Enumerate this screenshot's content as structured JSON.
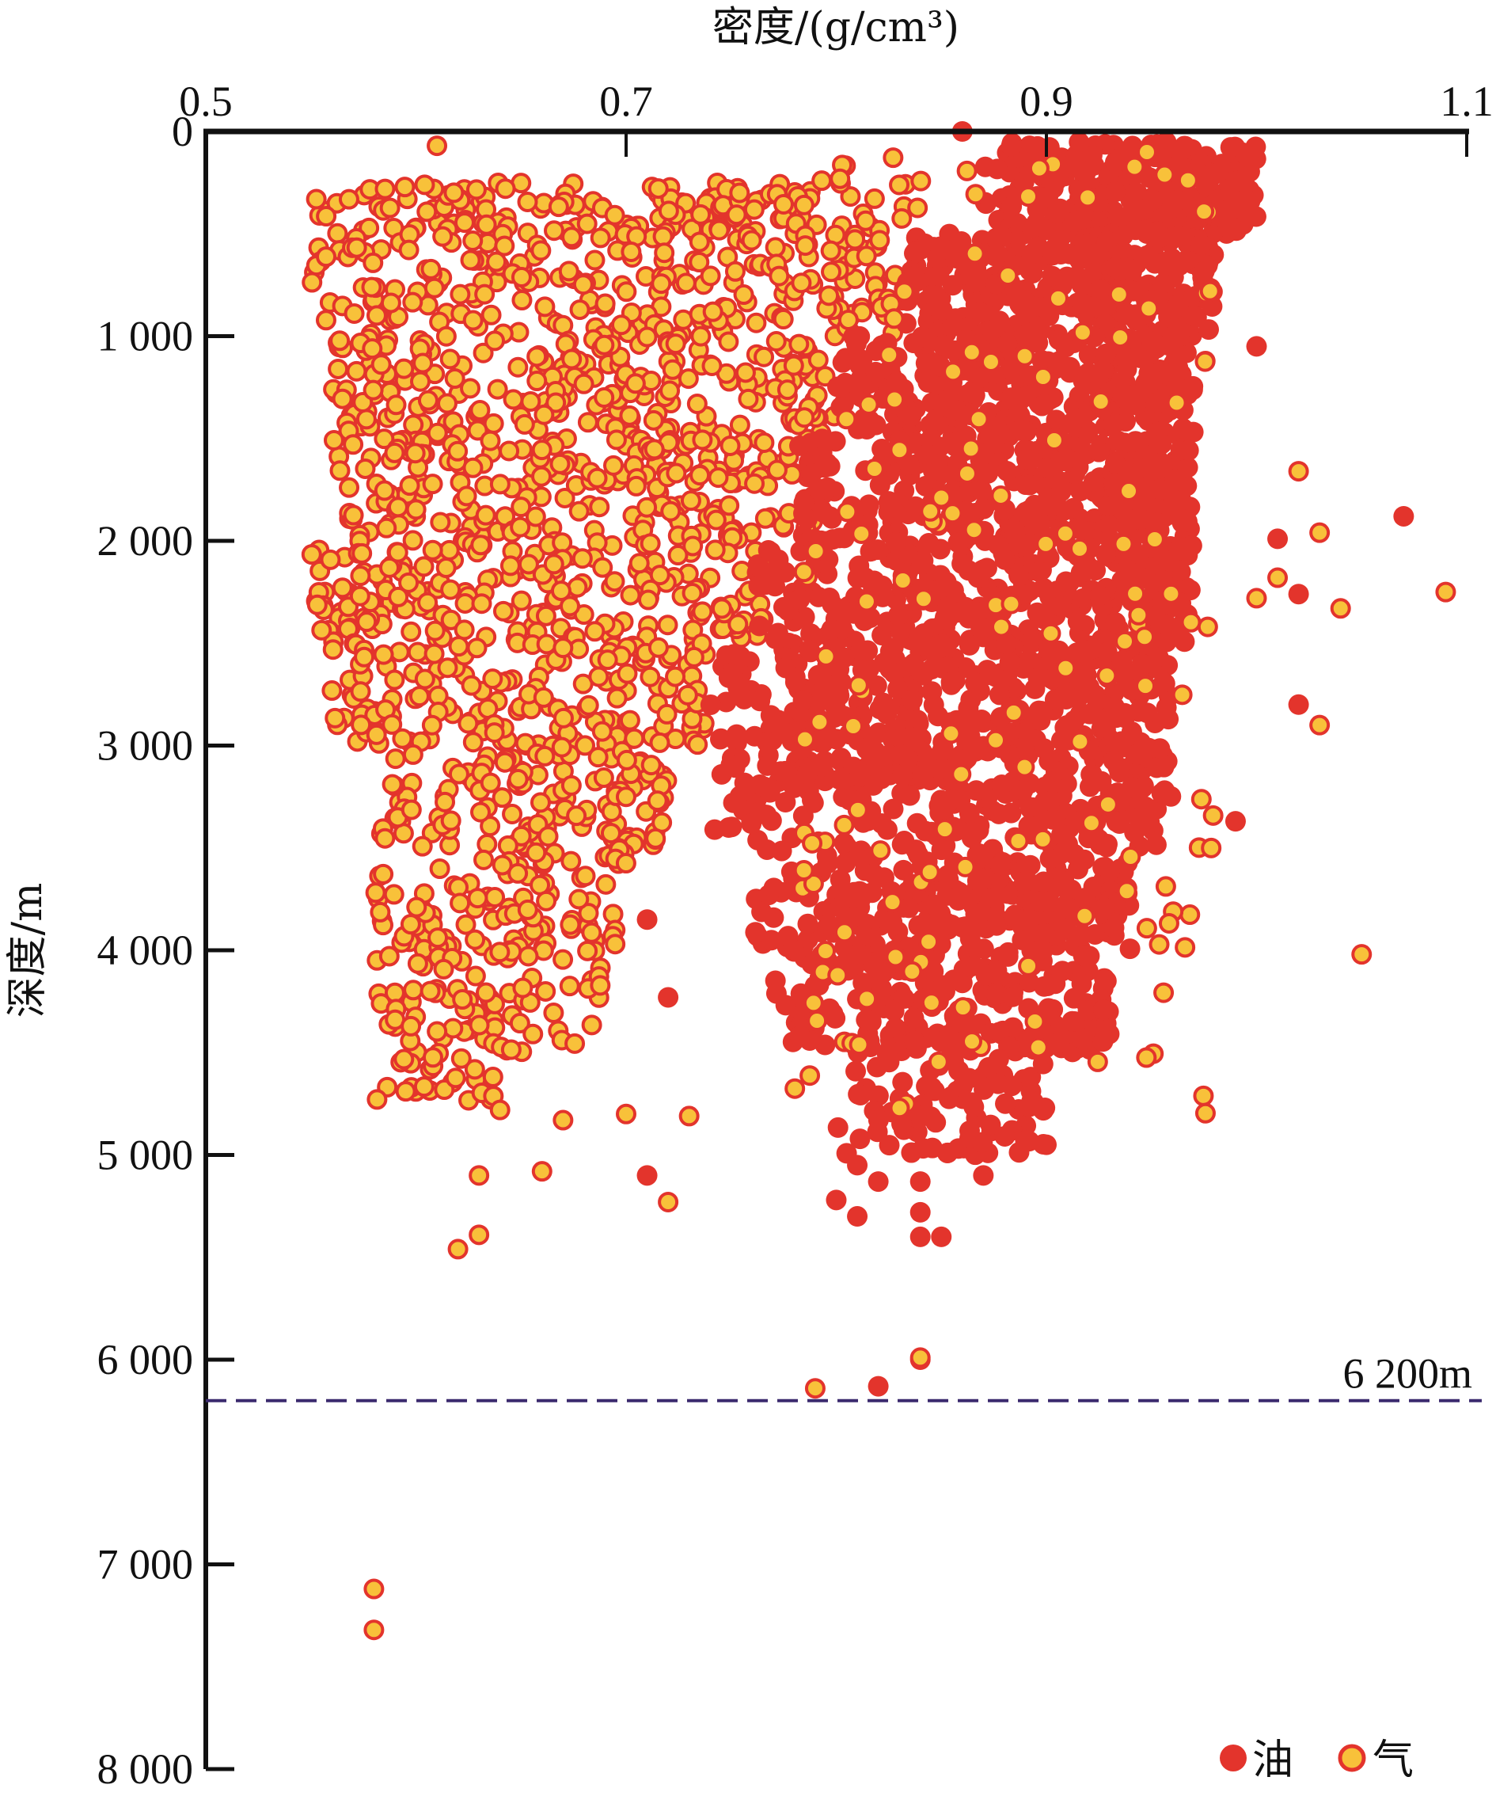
{
  "chart_data": {
    "type": "scatter",
    "title": "",
    "xlabel": "密度/(g/cm³)",
    "ylabel": "深度/m",
    "x_axis_position": "top",
    "y_axis_inverted": true,
    "xlim": [
      0.5,
      1.1
    ],
    "ylim": [
      0,
      8000
    ],
    "x_ticks": [
      0.5,
      0.7,
      0.9,
      1.1
    ],
    "x_tick_labels": [
      "0.5",
      "0.7",
      "0.9",
      "1.1"
    ],
    "y_ticks": [
      0,
      1000,
      2000,
      3000,
      4000,
      5000,
      6000,
      7000,
      8000
    ],
    "y_tick_labels": [
      "0",
      "1 000",
      "2 000",
      "3 000",
      "4 000",
      "5 000",
      "6 000",
      "7 000",
      "8 000"
    ],
    "grid": false,
    "legend": {
      "placement": "bottom-right",
      "entries": [
        "油",
        "气"
      ]
    },
    "reference_line": {
      "depth": 6200,
      "label": "6 200m",
      "color": "#3b2a6e",
      "style": "dashed"
    },
    "colors": {
      "oil": "#e3342c",
      "gas_fill": "#f8c13a",
      "gas_edge": "#e3342c"
    },
    "series": [
      {
        "name": "气",
        "key": "gas",
        "depth_bins": [
          {
            "depth": [
              250,
              500
            ],
            "density": [
              0.55,
              0.84
            ],
            "count": 150
          },
          {
            "depth": [
              500,
              1000
            ],
            "density": [
              0.55,
              0.83
            ],
            "count": 220
          },
          {
            "depth": [
              1000,
              1500
            ],
            "density": [
              0.56,
              0.8
            ],
            "count": 220
          },
          {
            "depth": [
              1500,
              2000
            ],
            "density": [
              0.56,
              0.79
            ],
            "count": 220
          },
          {
            "depth": [
              2000,
              2500
            ],
            "density": [
              0.55,
              0.77
            ],
            "count": 200
          },
          {
            "depth": [
              2500,
              3000
            ],
            "density": [
              0.56,
              0.74
            ],
            "count": 170
          },
          {
            "depth": [
              3000,
              3500
            ],
            "density": [
              0.58,
              0.72
            ],
            "count": 130
          },
          {
            "depth": [
              3500,
              4000
            ],
            "density": [
              0.58,
              0.7
            ],
            "count": 100
          },
          {
            "depth": [
              4000,
              4500
            ],
            "density": [
              0.58,
              0.69
            ],
            "count": 80
          },
          {
            "depth": [
              4500,
              4750
            ],
            "density": [
              0.58,
              0.64
            ],
            "count": 25
          }
        ],
        "scattered_in_oil": {
          "depth": [
            100,
            4800
          ],
          "density": [
            0.78,
            0.98
          ],
          "count": 170
        },
        "points": [
          [
            0.61,
            70
          ],
          [
            1.02,
            1660
          ],
          [
            1.03,
            1960
          ],
          [
            1.09,
            2250
          ],
          [
            1.04,
            2330
          ],
          [
            1.03,
            2900
          ],
          [
            1.05,
            4020
          ],
          [
            0.64,
            4780
          ],
          [
            0.67,
            4830
          ],
          [
            0.7,
            4800
          ],
          [
            0.73,
            4810
          ],
          [
            0.63,
            5100
          ],
          [
            0.66,
            5080
          ],
          [
            0.72,
            5230
          ],
          [
            0.63,
            5390
          ],
          [
            0.62,
            5460
          ],
          [
            0.84,
            5990
          ],
          [
            0.79,
            6140
          ],
          [
            0.58,
            7120
          ],
          [
            0.58,
            7320
          ],
          [
            1.01,
            2180
          ],
          [
            1.0,
            2280
          ]
        ]
      },
      {
        "name": "油",
        "key": "oil",
        "depth_bins": [
          {
            "depth": [
              50,
              500
            ],
            "density": [
              0.87,
              1.0
            ],
            "count": 260
          },
          {
            "depth": [
              500,
              1000
            ],
            "density": [
              0.83,
              0.98
            ],
            "count": 300
          },
          {
            "depth": [
              1000,
              1500
            ],
            "density": [
              0.8,
              0.97
            ],
            "count": 300
          },
          {
            "depth": [
              1500,
              2000
            ],
            "density": [
              0.78,
              0.97
            ],
            "count": 300
          },
          {
            "depth": [
              2000,
              2500
            ],
            "density": [
              0.76,
              0.97
            ],
            "count": 300
          },
          {
            "depth": [
              2500,
              3000
            ],
            "density": [
              0.74,
              0.96
            ],
            "count": 300
          },
          {
            "depth": [
              3000,
              3500
            ],
            "density": [
              0.74,
              0.96
            ],
            "count": 280
          },
          {
            "depth": [
              3500,
              4000
            ],
            "density": [
              0.76,
              0.94
            ],
            "count": 250
          },
          {
            "depth": [
              4000,
              4500
            ],
            "density": [
              0.77,
              0.93
            ],
            "count": 200
          },
          {
            "depth": [
              4500,
              5000
            ],
            "density": [
              0.8,
              0.9
            ],
            "count": 90
          }
        ],
        "points": [
          [
            0.86,
            0
          ],
          [
            1.0,
            1050
          ],
          [
            1.07,
            1880
          ],
          [
            1.01,
            1990
          ],
          [
            1.02,
            2260
          ],
          [
            1.02,
            2800
          ],
          [
            0.99,
            3370
          ],
          [
            0.71,
            3850
          ],
          [
            0.72,
            4230
          ],
          [
            0.71,
            5100
          ],
          [
            0.81,
            5050
          ],
          [
            0.82,
            5130
          ],
          [
            0.8,
            5220
          ],
          [
            0.81,
            5300
          ],
          [
            0.84,
            5130
          ],
          [
            0.87,
            5100
          ],
          [
            0.84,
            5400
          ],
          [
            0.85,
            5400
          ],
          [
            0.84,
            5280
          ],
          [
            0.89,
            4930
          ],
          [
            0.9,
            4950
          ],
          [
            0.84,
            6000
          ],
          [
            0.82,
            6130
          ]
        ]
      }
    ]
  }
}
